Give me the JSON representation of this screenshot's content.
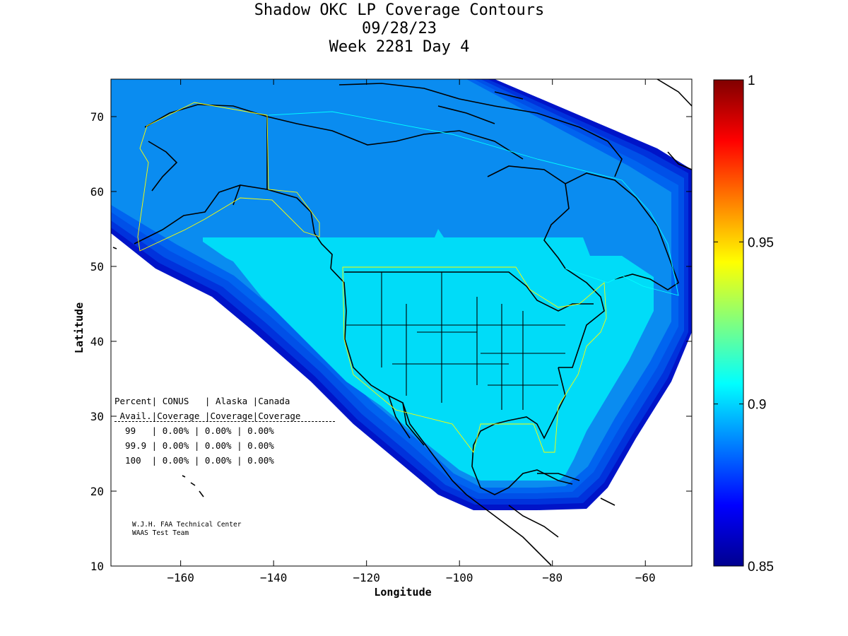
{
  "title": {
    "line1": "Shadow OKC LP Coverage Contours",
    "line2": "09/28/23",
    "line3": "Week 2281 Day 4"
  },
  "axes": {
    "xlabel": "Longitude",
    "ylabel": "Latitude",
    "xlim": [
      -175,
      -50
    ],
    "ylim": [
      10,
      75
    ],
    "xticks": [
      -160,
      -140,
      -120,
      -100,
      -80,
      -60
    ],
    "yticks": [
      10,
      20,
      30,
      40,
      50,
      60,
      70
    ]
  },
  "colorbar": {
    "min": 0.85,
    "max": 1,
    "ticks": [
      "1",
      "0.95",
      "0.9",
      "0.85"
    ],
    "tick_values": [
      1,
      0.95,
      0.9,
      0.85
    ]
  },
  "legend_table": {
    "header1": "Percent| CONUS   | Alaska |Canada",
    "header2": " Avail.|Coverage |Coverage|Coverage",
    "rows": [
      "  99   | 0.00% | 0.00% | 0.00%",
      "  99.9 | 0.00% | 0.00% | 0.00%",
      "  100  | 0.00% | 0.00% | 0.00%"
    ]
  },
  "credit": {
    "line1": "W.J.H. FAA Technical Center",
    "line2": "WAAS Test Team"
  },
  "colors": {
    "outer": "#0a8cf0",
    "core": "#00dcf8",
    "band1": "#0064f0",
    "band2": "#0050e8",
    "band3": "#0032dc",
    "band4": "#0014c8",
    "service_outline": "#ffff00"
  }
}
